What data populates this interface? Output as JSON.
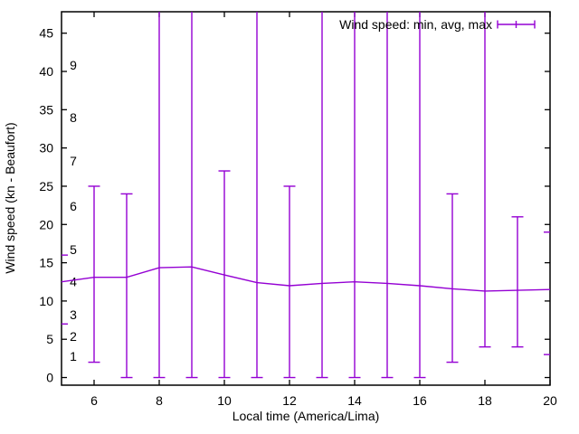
{
  "window": {
    "background": "#ffffff"
  },
  "chart_data": {
    "type": "line",
    "subtype": "errorbars",
    "title": "",
    "xlabel": "Local time (America/Lima)",
    "ylabel": "Wind speed (kn - Beaufort)",
    "legend": {
      "label": "Wind speed: min, avg, max",
      "position": "top-right-inside",
      "border": false
    },
    "series_color": "#9400d3",
    "axis_color": "#000000",
    "grid": false,
    "xlim": [
      5,
      20
    ],
    "ylim": [
      -1,
      47.8
    ],
    "x_ticks": [
      6,
      8,
      10,
      12,
      14,
      16,
      18,
      20
    ],
    "y_ticks": [
      0,
      5,
      10,
      15,
      20,
      25,
      30,
      35,
      40,
      45
    ],
    "beaufort_inner_labels": [
      {
        "label": "1",
        "kn": 2.8
      },
      {
        "label": "2",
        "kn": 5.4
      },
      {
        "label": "3",
        "kn": 8.2
      },
      {
        "label": "4",
        "kn": 12.5
      },
      {
        "label": "5",
        "kn": 16.7
      },
      {
        "label": "6",
        "kn": 22.4
      },
      {
        "label": "7",
        "kn": 28.3
      },
      {
        "label": "8",
        "kn": 34.0
      },
      {
        "label": "9",
        "kn": 40.8
      }
    ],
    "points": [
      {
        "hour": 5,
        "min": 7,
        "avg": 12.5,
        "max": 16,
        "max_clipped": false,
        "edge": "left"
      },
      {
        "hour": 6,
        "min": 2,
        "avg": 13.1,
        "max": 25,
        "max_clipped": false,
        "edge": null
      },
      {
        "hour": 7,
        "min": 0,
        "avg": 13.1,
        "max": 24,
        "max_clipped": false,
        "edge": null
      },
      {
        "hour": 8,
        "min": 0,
        "avg": 14.35,
        "max": null,
        "max_clipped": true,
        "edge": null
      },
      {
        "hour": 9,
        "min": 0,
        "avg": 14.45,
        "max": null,
        "max_clipped": true,
        "edge": null
      },
      {
        "hour": 10,
        "min": 0,
        "avg": 13.4,
        "max": 27,
        "max_clipped": false,
        "edge": null
      },
      {
        "hour": 11,
        "min": 0,
        "avg": 12.4,
        "max": null,
        "max_clipped": true,
        "edge": null
      },
      {
        "hour": 12,
        "min": 0,
        "avg": 12.0,
        "max": 25,
        "max_clipped": false,
        "edge": null
      },
      {
        "hour": 13,
        "min": 0,
        "avg": 12.3,
        "max": null,
        "max_clipped": true,
        "edge": null
      },
      {
        "hour": 14,
        "min": 0,
        "avg": 12.5,
        "max": null,
        "max_clipped": true,
        "edge": null
      },
      {
        "hour": 15,
        "min": 0,
        "avg": 12.3,
        "max": null,
        "max_clipped": true,
        "edge": null
      },
      {
        "hour": 16,
        "min": 0,
        "avg": 12.0,
        "max": null,
        "max_clipped": true,
        "edge": null
      },
      {
        "hour": 17,
        "min": 2,
        "avg": 11.6,
        "max": 24,
        "max_clipped": false,
        "edge": null
      },
      {
        "hour": 18,
        "min": 4,
        "avg": 11.3,
        "max": null,
        "max_clipped": true,
        "edge": null
      },
      {
        "hour": 19,
        "min": 4,
        "avg": 11.4,
        "max": 21,
        "max_clipped": false,
        "edge": null
      },
      {
        "hour": 20,
        "min": 3,
        "avg": 11.5,
        "max": 19,
        "max_clipped": false,
        "edge": "right"
      }
    ]
  }
}
